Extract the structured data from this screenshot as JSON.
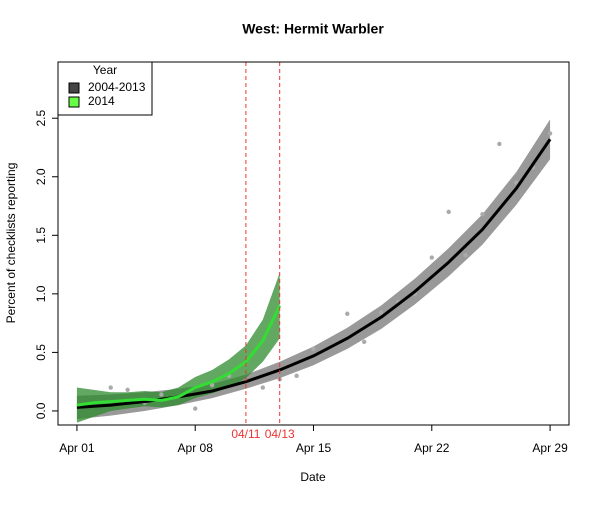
{
  "chart_data": {
    "type": "line",
    "title": "West: Hermit Warbler",
    "xlabel": "Date",
    "ylabel": "Percent of checklists reporting",
    "xlim": [
      -0.12,
      30.12
    ],
    "ylim": [
      -0.12,
      2.98
    ],
    "xticks": [
      {
        "value": 1,
        "label": "Apr 01"
      },
      {
        "value": 8,
        "label": "Apr 08"
      },
      {
        "value": 15,
        "label": "Apr 15"
      },
      {
        "value": 22,
        "label": "Apr 22"
      },
      {
        "value": 29,
        "label": "Apr 29"
      }
    ],
    "yticks": [
      {
        "value": 0,
        "label": "0.0"
      },
      {
        "value": 0.5,
        "label": "0.5"
      },
      {
        "value": 1,
        "label": "1.0"
      },
      {
        "value": 1.5,
        "label": "1.5"
      },
      {
        "value": 2,
        "label": "2.0"
      },
      {
        "value": 2.5,
        "label": "2.5"
      }
    ],
    "legend_title": "Year",
    "legend_position": "top-left",
    "series": [
      {
        "name": "2004-2013",
        "color": "#000000",
        "fill": "#444444",
        "band_color": "#999999",
        "x": [
          1,
          3,
          5,
          7,
          9,
          11,
          13,
          15,
          17,
          19,
          21,
          23,
          25,
          27,
          29
        ],
        "values": [
          0.03,
          0.05,
          0.08,
          0.12,
          0.17,
          0.25,
          0.35,
          0.47,
          0.62,
          0.8,
          1.02,
          1.27,
          1.55,
          1.9,
          2.32
        ],
        "lower": [
          -0.07,
          -0.04,
          0.0,
          0.05,
          0.11,
          0.19,
          0.28,
          0.39,
          0.53,
          0.7,
          0.91,
          1.15,
          1.42,
          1.76,
          2.15
        ],
        "upper": [
          0.13,
          0.14,
          0.16,
          0.19,
          0.23,
          0.31,
          0.42,
          0.55,
          0.71,
          0.9,
          1.13,
          1.39,
          1.68,
          2.04,
          2.49
        ]
      },
      {
        "name": "2014",
        "color": "#33dd33",
        "fill": "#66ff44",
        "band_color": "#2e8b2e",
        "x": [
          1,
          2,
          3,
          4,
          5,
          6,
          7,
          8,
          9,
          10,
          11,
          12,
          13
        ],
        "values": [
          0.05,
          0.07,
          0.08,
          0.09,
          0.1,
          0.09,
          0.12,
          0.2,
          0.25,
          0.32,
          0.42,
          0.6,
          0.9
        ],
        "lower": [
          -0.1,
          -0.05,
          0.0,
          0.02,
          0.04,
          0.03,
          0.05,
          0.11,
          0.15,
          0.2,
          0.28,
          0.42,
          0.62
        ],
        "upper": [
          0.2,
          0.18,
          0.16,
          0.16,
          0.17,
          0.16,
          0.2,
          0.29,
          0.35,
          0.44,
          0.56,
          0.78,
          1.18
        ]
      }
    ],
    "points": {
      "color": "#aaaaaa",
      "x": [
        3,
        4,
        5,
        6,
        8,
        9,
        10,
        12,
        13,
        14,
        15,
        17,
        18,
        19,
        20,
        21,
        22,
        23,
        24,
        25,
        26,
        27,
        28,
        29
      ],
      "values": [
        0.2,
        0.18,
        0.07,
        0.14,
        0.02,
        0.22,
        0.3,
        0.2,
        0.27,
        0.3,
        0.53,
        0.83,
        0.59,
        0.84,
        0.93,
        1.0,
        1.31,
        1.7,
        1.33,
        1.68,
        2.28,
        1.95,
        2.08,
        2.37
      ]
    },
    "reference_lines": [
      {
        "x": 11,
        "label": "04/11"
      },
      {
        "x": 13,
        "label": "04/13"
      }
    ],
    "reference_color": "#ee3333"
  }
}
